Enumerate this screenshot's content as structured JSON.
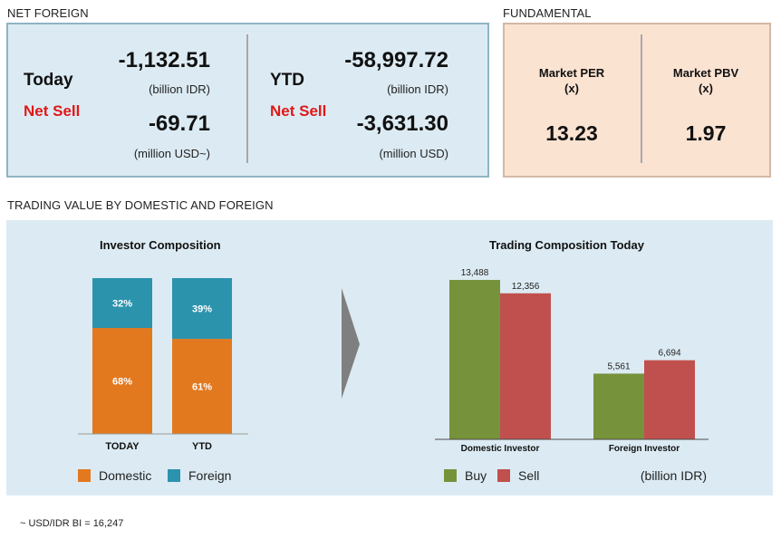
{
  "net_foreign": {
    "section_title": "NET FOREIGN",
    "today": {
      "label": "Today",
      "status": "Net Sell",
      "value_idr": "-1,132.51",
      "unit_idr": "(billion IDR)",
      "value_usd": "-69.71",
      "unit_usd": "(million USD~)"
    },
    "ytd": {
      "label": "YTD",
      "status": "Net Sell",
      "value_idr": "-58,997.72",
      "unit_idr": "(billion IDR)",
      "value_usd": "-3,631.30",
      "unit_usd": "(million USD)"
    }
  },
  "fundamental": {
    "section_title": "FUNDAMENTAL",
    "per": {
      "label_line1": "Market PER",
      "label_line2": "(x)",
      "value": "13.23"
    },
    "pbv": {
      "label_line1": "Market PBV",
      "label_line2": "(x)",
      "value": "1.97"
    }
  },
  "trading_value": {
    "section_title": "TRADING VALUE BY DOMESTIC AND FOREIGN"
  },
  "colors": {
    "domestic": "#e2791f",
    "foreign": "#2c93ad",
    "buy": "#76923b",
    "sell": "#c0504d",
    "arrow": "#7f7f7f",
    "net_sell": "#e01818"
  },
  "chart_data": [
    {
      "type": "bar",
      "stacked": true,
      "percent": true,
      "title": "Investor Composition",
      "categories": [
        "TODAY",
        "YTD"
      ],
      "series": [
        {
          "name": "Domestic",
          "values": [
            68,
            61
          ],
          "labels": [
            "68%",
            "61%"
          ],
          "color": "#e2791f"
        },
        {
          "name": "Foreign",
          "values": [
            32,
            39
          ],
          "labels": [
            "32%",
            "39%"
          ],
          "color": "#2c93ad"
        }
      ],
      "ylim": [
        0,
        100
      ],
      "legend_position": "bottom"
    },
    {
      "type": "bar",
      "title": "Trading Composition Today",
      "categories": [
        "Domestic Investor",
        "Foreign Investor"
      ],
      "series": [
        {
          "name": "Buy",
          "values": [
            13488,
            5561
          ],
          "labels": [
            "13,488",
            "5,561"
          ],
          "color": "#76923b"
        },
        {
          "name": "Sell",
          "values": [
            12356,
            6694
          ],
          "labels": [
            "12,356",
            "6,694"
          ],
          "color": "#c0504d"
        }
      ],
      "unit_note": "(billion IDR)",
      "ylim": [
        0,
        13488
      ],
      "legend_position": "bottom"
    }
  ],
  "footnote": "~ USD/IDR BI = 16,247"
}
